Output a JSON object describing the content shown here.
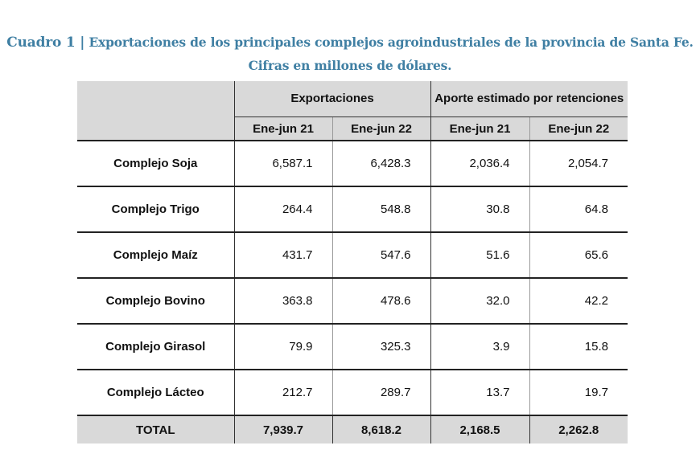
{
  "title": {
    "label": "Cuadro 1 |",
    "line1": "Exportaciones de los principales complejos agroindustriales de la provincia de Santa Fe.",
    "line2": "Cifras en millones de dólares."
  },
  "table": {
    "group_headers": [
      "Exportaciones",
      "Aporte estimado por retenciones"
    ],
    "period_headers": [
      "Ene-jun 21",
      "Ene-jun 22",
      "Ene-jun 21",
      "Ene-jun 22"
    ],
    "rows": [
      {
        "label": "Complejo Soja",
        "values": [
          "6,587.1",
          "6,428.3",
          "2,036.4",
          "2,054.7"
        ]
      },
      {
        "label": "Complejo Trigo",
        "values": [
          "264.4",
          "548.8",
          "30.8",
          "64.8"
        ]
      },
      {
        "label": "Complejo Maíz",
        "values": [
          "431.7",
          "547.6",
          "51.6",
          "65.6"
        ]
      },
      {
        "label": "Complejo Bovino",
        "values": [
          "363.8",
          "478.6",
          "32.0",
          "42.2"
        ]
      },
      {
        "label": "Complejo Girasol",
        "values": [
          "79.9",
          "325.3",
          "3.9",
          "15.8"
        ]
      },
      {
        "label": "Complejo Lácteo",
        "values": [
          "212.7",
          "289.7",
          "13.7",
          "19.7"
        ]
      }
    ],
    "total": {
      "label": "TOTAL",
      "values": [
        "7,939.7",
        "8,618.2",
        "2,168.5",
        "2,262.8"
      ]
    }
  }
}
